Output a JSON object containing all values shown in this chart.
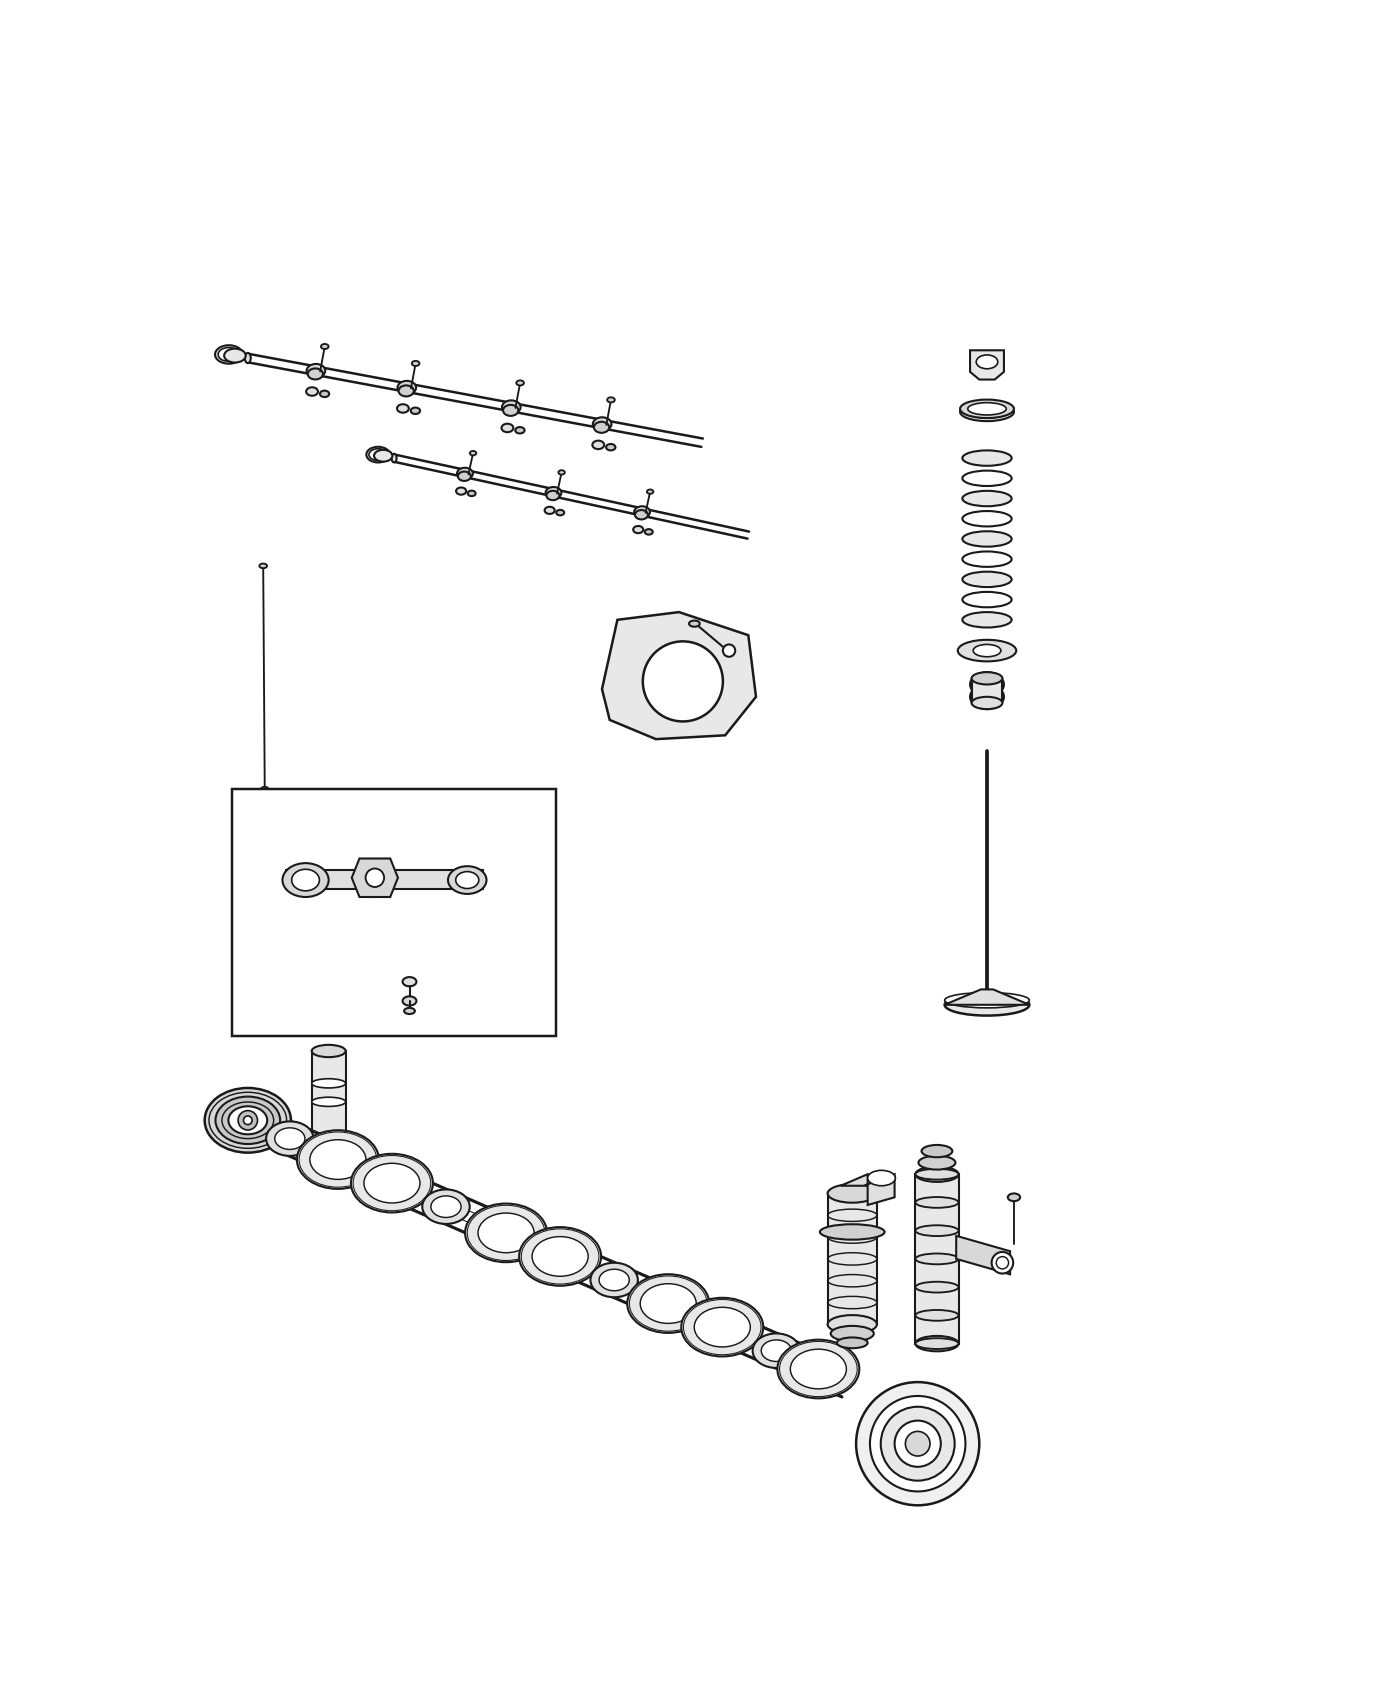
{
  "bg_color": "#ffffff",
  "line_color": "#1a1a1a",
  "line_width": 1.5,
  "fig_width": 14.0,
  "fig_height": 17.0,
  "xlim": [
    0,
    1400
  ],
  "ylim": [
    0,
    1700
  ]
}
